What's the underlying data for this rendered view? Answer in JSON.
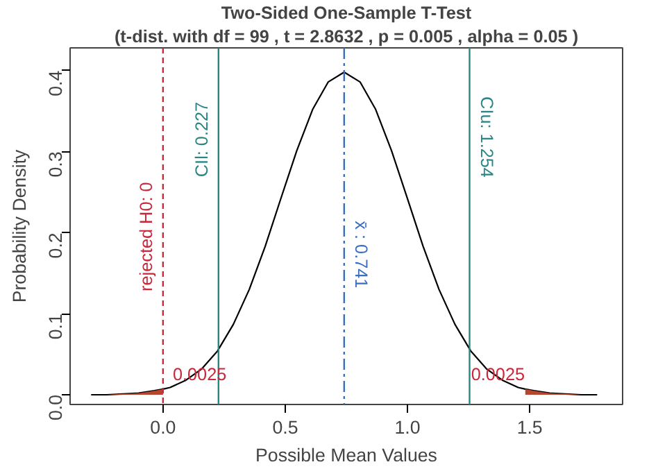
{
  "chart_data": {
    "type": "line",
    "title": "Two-Sided One-Sample T-Test",
    "subtitle": "(t-dist. with df = 99 , t = 2.8632 , p = 0.005 , alpha = 0.05 )",
    "xlabel": "Possible Mean Values",
    "ylabel": "Probability Density",
    "xlim": [
      -0.38,
      1.88
    ],
    "ylim": [
      -0.012,
      0.428
    ],
    "xticks": [
      {
        "value": 0,
        "label": "0.0"
      },
      0.5,
      {
        "value": 1,
        "label": "1.0"
      },
      1.5
    ],
    "yticks": [
      {
        "value": 0,
        "label": "0.0"
      },
      0.1,
      0.2,
      0.3,
      0.4
    ],
    "grid": false,
    "series": [
      {
        "color": "#000000",
        "x": [
          -0.294,
          -0.23,
          -0.165,
          -0.1,
          -0.035,
          0.0,
          0.029,
          0.094,
          0.159,
          0.223,
          0.288,
          0.353,
          0.418,
          0.482,
          0.547,
          0.612,
          0.676,
          0.741,
          0.806,
          0.87,
          0.935,
          1.0,
          1.064,
          1.129,
          1.194,
          1.259,
          1.323,
          1.388,
          1.453,
          1.482,
          1.517,
          1.582,
          1.647,
          1.711,
          1.776
        ],
        "values": [
          0.0,
          0.0,
          0.001,
          0.002,
          0.005,
          0.007,
          0.009,
          0.018,
          0.032,
          0.054,
          0.087,
          0.13,
          0.183,
          0.242,
          0.301,
          0.352,
          0.386,
          0.398,
          0.386,
          0.352,
          0.301,
          0.242,
          0.183,
          0.13,
          0.087,
          0.054,
          0.032,
          0.018,
          0.009,
          0.007,
          0.005,
          0.002,
          0.001,
          0.0,
          0.0
        ]
      },
      {
        "type": "area",
        "color": "#b5452f",
        "x": [
          -0.294,
          -0.23,
          -0.165,
          -0.1,
          -0.035,
          0.0
        ],
        "values": [
          0.0,
          0.0,
          0.001,
          0.002,
          0.005,
          0.007
        ]
      },
      {
        "type": "area",
        "color": "#b5452f",
        "x": [
          1.482,
          1.517,
          1.582,
          1.647,
          1.711,
          1.776
        ],
        "values": [
          0.007,
          0.005,
          0.002,
          0.001,
          0.0,
          0.0
        ]
      }
    ],
    "ref_lines": [
      {
        "axis": "x",
        "value": 0,
        "label": "rejected H0: 0",
        "color": "#c8283a",
        "line_style": "dashed"
      },
      {
        "axis": "x",
        "value": 0.227,
        "label": "CIl: 0.227",
        "color": "#2a8585",
        "line_style": "solid"
      },
      {
        "axis": "x",
        "value": 0.741,
        "label": "x̄ : 0.741",
        "color": "#3a6fbf",
        "line_style": "dashdot"
      },
      {
        "axis": "x",
        "value": 1.254,
        "label": "CIu: 1.254",
        "color": "#2a8585",
        "line_style": "solid"
      }
    ],
    "annotations": [
      {
        "text": "0.0025",
        "x": 0.04,
        "y": 0.018
      },
      {
        "text": "0.0025",
        "x": 1.26,
        "y": 0.018
      }
    ]
  }
}
